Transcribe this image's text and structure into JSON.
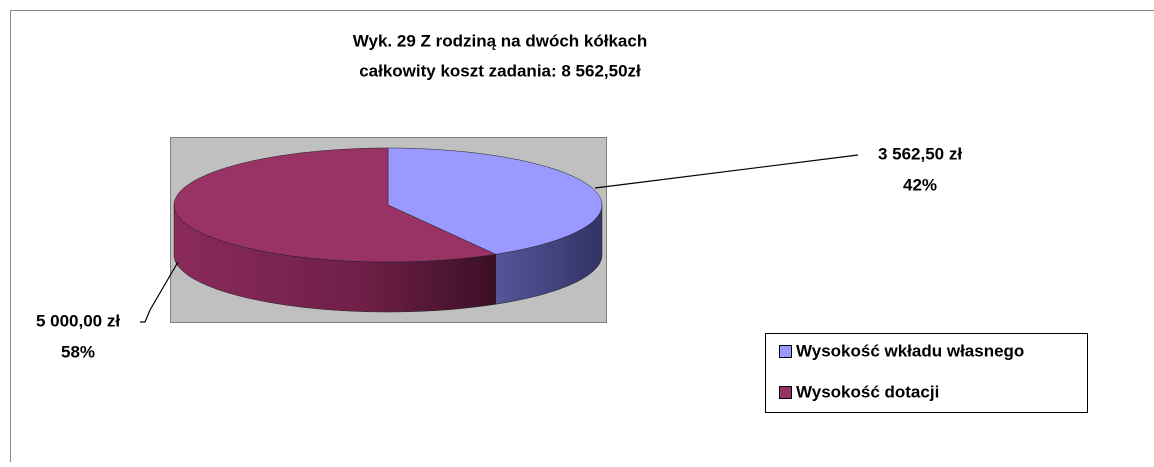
{
  "chart_data": {
    "type": "pie3d",
    "title": [
      "Wyk. 29 Z rodziną na dwóch kółkach",
      "całkowity koszt zadania: 8 562,50zł"
    ],
    "categories": [
      "Wysokość wkładu własnego",
      "Wysokość dotacji"
    ],
    "values": [
      3562.5,
      5000
    ],
    "value_labels": [
      "3 562,50 zł",
      "5 000,00 zł"
    ],
    "percents": [
      42,
      58
    ],
    "percent_labels": [
      "42%",
      "58%"
    ],
    "colors": [
      "#9999ff",
      "#993366"
    ],
    "legend": "bottom-right"
  }
}
